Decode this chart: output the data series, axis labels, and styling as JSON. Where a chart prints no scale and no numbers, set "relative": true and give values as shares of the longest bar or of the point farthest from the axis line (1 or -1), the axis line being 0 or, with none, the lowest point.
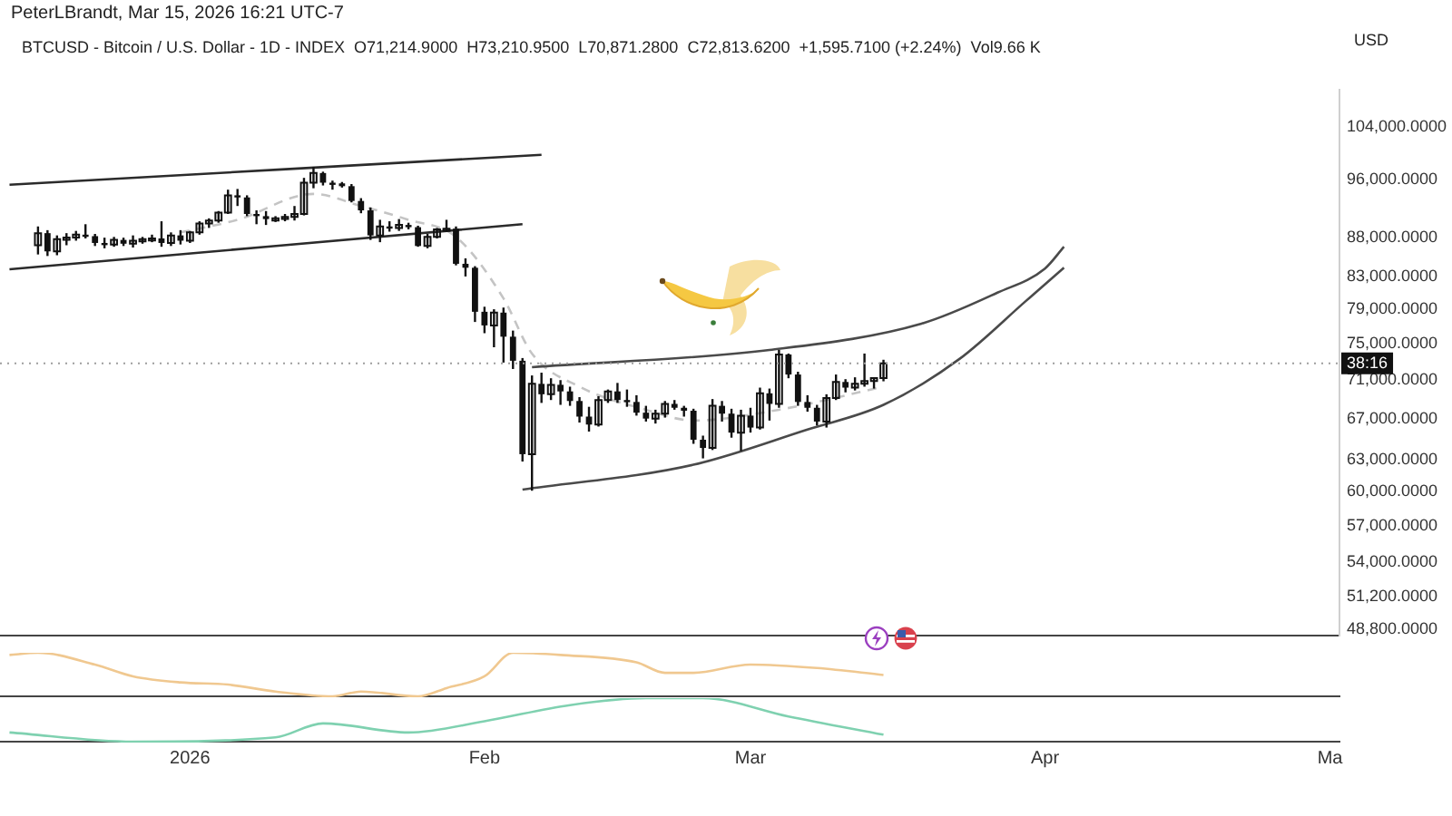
{
  "chart_data": [
    {
      "type": "candlestick",
      "title": "PeterLBrandt, Mar 15, 2026 16:21 UTC-7",
      "subtitle": "BTCUSD - Bitcoin / U.S. Dollar - 1D - INDEX  O71,214.9000  H73,210.9500  L70,871.2800  C72,813.6200  +1,595.7100 (+2.24%)  Vol9.66 K",
      "ylabel": "USD",
      "color": "#111111",
      "log": "y",
      "tick_labels": "y",
      "xlim": [
        "2025-12-12",
        "2026-05-02"
      ],
      "ylim": [
        48300,
        110000
      ],
      "yticks": [
        {
          "value": 48800,
          "label": "48,800.0000"
        },
        {
          "value": 51200,
          "label": "51,200.0000"
        },
        {
          "value": 54000,
          "label": "54,000.0000"
        },
        {
          "value": 57000,
          "label": "57,000.0000"
        },
        {
          "value": 60000,
          "label": "60,000.0000"
        },
        {
          "value": 63000,
          "label": "63,000.0000"
        },
        {
          "value": 67000,
          "label": "67,000.0000"
        },
        {
          "value": 71000,
          "label": "71,000.0000"
        },
        {
          "value": 75000,
          "label": "75,000.0000"
        },
        {
          "value": 79000,
          "label": "79,000.0000"
        },
        {
          "value": 83000,
          "label": "83,000.0000"
        },
        {
          "value": 88000,
          "label": "88,000.0000"
        },
        {
          "value": 96000,
          "label": "96,000.0000"
        },
        {
          "value": 104000,
          "label": "104,000.0000"
        }
      ],
      "x": [
        "2025-12-16",
        "2025-12-17",
        "2025-12-18",
        "2025-12-19",
        "2025-12-20",
        "2025-12-21",
        "2025-12-22",
        "2025-12-23",
        "2025-12-24",
        "2025-12-25",
        "2025-12-26",
        "2025-12-27",
        "2025-12-28",
        "2025-12-29",
        "2025-12-30",
        "2025-12-31",
        "2026-01-01",
        "2026-01-02",
        "2026-01-03",
        "2026-01-04",
        "2026-01-05",
        "2026-01-06",
        "2026-01-07",
        "2026-01-08",
        "2026-01-09",
        "2026-01-10",
        "2026-01-11",
        "2026-01-12",
        "2026-01-13",
        "2026-01-14",
        "2026-01-15",
        "2026-01-16",
        "2026-01-17",
        "2026-01-18",
        "2026-01-19",
        "2026-01-20",
        "2026-01-21",
        "2026-01-22",
        "2026-01-23",
        "2026-01-24",
        "2026-01-25",
        "2026-01-26",
        "2026-01-27",
        "2026-01-28",
        "2026-01-29",
        "2026-01-30",
        "2026-01-31",
        "2026-02-01",
        "2026-02-02",
        "2026-02-03",
        "2026-02-04",
        "2026-02-05",
        "2026-02-06",
        "2026-02-07",
        "2026-02-08",
        "2026-02-09",
        "2026-02-10",
        "2026-02-11",
        "2026-02-12",
        "2026-02-13",
        "2026-02-14",
        "2026-02-15",
        "2026-02-16",
        "2026-02-17",
        "2026-02-18",
        "2026-02-19",
        "2026-02-20",
        "2026-02-21",
        "2026-02-22",
        "2026-02-23",
        "2026-02-24",
        "2026-02-25",
        "2026-02-26",
        "2026-02-27",
        "2026-02-28",
        "2026-03-01",
        "2026-03-02",
        "2026-03-03",
        "2026-03-04",
        "2026-03-05",
        "2026-03-06",
        "2026-03-07",
        "2026-03-08",
        "2026-03-09",
        "2026-03-10",
        "2026-03-11",
        "2026-03-12",
        "2026-03-13",
        "2026-03-14",
        "2026-03-15"
      ],
      "ohlc": [
        [
          87000,
          89500,
          85800,
          88600
        ],
        [
          88600,
          89000,
          85600,
          86200
        ],
        [
          86200,
          88300,
          85700,
          87800
        ],
        [
          87800,
          88600,
          87000,
          88000
        ],
        [
          88000,
          88900,
          87600,
          88400
        ],
        [
          88400,
          89800,
          87900,
          88200
        ],
        [
          88200,
          88500,
          86900,
          87300
        ],
        [
          87300,
          88000,
          86600,
          87100
        ],
        [
          87100,
          88100,
          86800,
          87700
        ],
        [
          87700,
          88000,
          86900,
          87200
        ],
        [
          87200,
          88300,
          86700,
          87600
        ],
        [
          87600,
          88100,
          87200,
          87800
        ],
        [
          87800,
          88400,
          87400,
          87900
        ],
        [
          87900,
          90200,
          86800,
          87300
        ],
        [
          87300,
          88700,
          86900,
          88300
        ],
        [
          88300,
          89000,
          87100,
          87600
        ],
        [
          87600,
          88900,
          87300,
          88700
        ],
        [
          88700,
          90200,
          88400,
          89900
        ],
        [
          89900,
          90600,
          89300,
          90300
        ],
        [
          90300,
          91600,
          90000,
          91400
        ],
        [
          91400,
          94600,
          91200,
          93800
        ],
        [
          93800,
          94700,
          92300,
          93500
        ],
        [
          93500,
          93800,
          90900,
          91200
        ],
        [
          91200,
          91700,
          89800,
          90900
        ],
        [
          90900,
          91600,
          89700,
          90500
        ],
        [
          90500,
          90900,
          90100,
          90600
        ],
        [
          90600,
          91200,
          90200,
          90800
        ],
        [
          90800,
          92300,
          90300,
          91200
        ],
        [
          91200,
          96300,
          91000,
          95600
        ],
        [
          95600,
          97900,
          94800,
          97000
        ],
        [
          97000,
          97200,
          95200,
          95600
        ],
        [
          95600,
          95900,
          94600,
          95500
        ],
        [
          95500,
          95700,
          94900,
          95100
        ],
        [
          95100,
          95400,
          92800,
          93000
        ],
        [
          93000,
          93400,
          91300,
          91700
        ],
        [
          91700,
          92100,
          87700,
          88300
        ],
        [
          88300,
          90400,
          87400,
          89500
        ],
        [
          89500,
          90200,
          88800,
          89300
        ],
        [
          89300,
          90500,
          88900,
          89700
        ],
        [
          89700,
          90000,
          89100,
          89400
        ],
        [
          89400,
          89600,
          86800,
          86900
        ],
        [
          86900,
          88500,
          86600,
          88100
        ],
        [
          88100,
          89300,
          87900,
          89100
        ],
        [
          89100,
          90400,
          88800,
          89200
        ],
        [
          89200,
          89500,
          84400,
          84600
        ],
        [
          84600,
          85300,
          83000,
          84100
        ],
        [
          84100,
          84300,
          77500,
          78700
        ],
        [
          78700,
          79300,
          76200,
          77100
        ],
        [
          77100,
          79000,
          74600,
          78600
        ],
        [
          78600,
          79200,
          72900,
          75800
        ],
        [
          75800,
          76500,
          72200,
          73100
        ],
        [
          73100,
          73400,
          62800,
          63500
        ],
        [
          63500,
          71500,
          60100,
          70600
        ],
        [
          70600,
          71800,
          68600,
          69500
        ],
        [
          69500,
          71200,
          68900,
          70500
        ],
        [
          70500,
          71000,
          68400,
          69800
        ],
        [
          69800,
          70300,
          68300,
          68800
        ],
        [
          68800,
          69200,
          66600,
          67200
        ],
        [
          67200,
          68200,
          65700,
          66400
        ],
        [
          66400,
          69300,
          66200,
          68900
        ],
        [
          68900,
          70000,
          68600,
          69800
        ],
        [
          69800,
          70700,
          68600,
          68900
        ],
        [
          68900,
          70000,
          68200,
          68700
        ],
        [
          68700,
          69400,
          67300,
          67600
        ],
        [
          67600,
          68300,
          66700,
          67000
        ],
        [
          67000,
          67900,
          66500,
          67500
        ],
        [
          67500,
          68800,
          67100,
          68500
        ],
        [
          68500,
          68900,
          67900,
          68100
        ],
        [
          68100,
          68300,
          67200,
          67800
        ],
        [
          67800,
          68000,
          64500,
          64900
        ],
        [
          64900,
          65300,
          63100,
          64100
        ],
        [
          64100,
          69000,
          63900,
          68300
        ],
        [
          68300,
          68800,
          66700,
          67500
        ],
        [
          67500,
          68000,
          65100,
          65600
        ],
        [
          65600,
          67900,
          63800,
          67300
        ],
        [
          67300,
          68100,
          65600,
          66100
        ],
        [
          66100,
          70200,
          65900,
          69600
        ],
        [
          69600,
          70100,
          66800,
          68500
        ],
        [
          68500,
          74300,
          68100,
          73800
        ],
        [
          73800,
          73900,
          71200,
          71600
        ],
        [
          71600,
          71900,
          68300,
          68700
        ],
        [
          68700,
          69400,
          67700,
          68100
        ],
        [
          68100,
          68400,
          66300,
          66700
        ],
        [
          66700,
          69500,
          66100,
          69100
        ],
        [
          69100,
          71600,
          68900,
          70800
        ],
        [
          70800,
          71100,
          69700,
          70200
        ],
        [
          70200,
          71300,
          69900,
          70600
        ],
        [
          70600,
          73900,
          70300,
          70900
        ],
        [
          70900,
          71300,
          70100,
          71214.9
        ],
        [
          71214.9,
          73210.95,
          70871.28,
          72813.62
        ]
      ],
      "series": [
        {
          "type": "line",
          "color": "#2b2b2b",
          "x": [
            "2025-12-13",
            "2026-02-07"
          ],
          "values": [
            95300,
            99700
          ]
        },
        {
          "type": "line",
          "color": "#2b2b2b",
          "x": [
            "2025-12-13",
            "2026-02-05"
          ],
          "values": [
            83900,
            89800
          ]
        },
        {
          "type": "line",
          "color": "#4a4a4a",
          "x": [
            "2026-02-06",
            "2026-03-03",
            "2026-03-19",
            "2026-03-27",
            "2026-04-01",
            "2026-04-03"
          ],
          "values": [
            72400,
            74300,
            77300,
            81000,
            84000,
            86800
          ]
        },
        {
          "type": "line",
          "color": "#4a4a4a",
          "x": [
            "2026-02-05",
            "2026-02-23",
            "2026-03-07",
            "2026-03-15",
            "2026-03-23",
            "2026-03-30",
            "2026-04-03"
          ],
          "values": [
            60200,
            62500,
            65900,
            68400,
            73300,
            80000,
            84100
          ]
        },
        {
          "type": "line",
          "color": "#c4c4c4",
          "line_style": "dashed",
          "x": [
            "2025-12-31",
            "2026-01-06",
            "2026-01-14",
            "2026-01-19",
            "2026-01-24",
            "2026-01-29",
            "2026-02-03",
            "2026-02-06",
            "2026-02-11",
            "2026-02-18",
            "2026-02-23",
            "2026-03-04",
            "2026-03-15"
          ],
          "values": [
            88700,
            90400,
            94000,
            92300,
            90400,
            88100,
            80300,
            73900,
            70300,
            67900,
            66800,
            67900,
            70300
          ]
        }
      ],
      "ref_lines": [
        {
          "axis": "y",
          "value": 72813.62,
          "line_style": "dotted",
          "color": "#9e9e9e"
        }
      ],
      "annotations": [
        "38:16"
      ]
    },
    {
      "type": "line",
      "relative": true,
      "tick_labels": false,
      "color": "#f0c890",
      "xlim": [
        "2025-12-12",
        "2026-05-02"
      ],
      "x": [
        "2025-12-13",
        "2025-12-16",
        "2025-12-22",
        "2025-12-26",
        "2025-12-31",
        "2026-01-05",
        "2026-01-10",
        "2026-01-16",
        "2026-01-19",
        "2026-01-25",
        "2026-01-28",
        "2026-02-01",
        "2026-02-04",
        "2026-02-09",
        "2026-02-17",
        "2026-02-20",
        "2026-02-23",
        "2026-03-01",
        "2026-03-08",
        "2026-03-15"
      ],
      "values": [
        0.95,
        1,
        0.73,
        0.46,
        0.32,
        0.27,
        0.11,
        0,
        0.11,
        0,
        0.19,
        0.46,
        1,
        0.95,
        0.78,
        0.54,
        0.54,
        0.73,
        0.65,
        0.49
      ]
    },
    {
      "type": "line",
      "relative": true,
      "tick_labels": "x",
      "color": "#7fd1b0",
      "xlim": [
        "2025-12-12",
        "2026-05-02"
      ],
      "xticks": [
        {
          "value": "2026-01-01",
          "label": "2026"
        },
        {
          "value": "2026-02-01",
          "label": "Feb"
        },
        {
          "value": "2026-03-01",
          "label": "Mar"
        },
        {
          "value": "2026-04-01",
          "label": "Apr"
        },
        {
          "value": "2026-05-01",
          "label": "Ma"
        }
      ],
      "x": [
        "2025-12-13",
        "2025-12-26",
        "2026-01-10",
        "2026-01-15",
        "2026-01-24",
        "2026-02-01",
        "2026-02-10",
        "2026-02-18",
        "2026-02-24",
        "2026-03-05",
        "2026-03-15"
      ],
      "values": [
        0.21,
        0,
        0.1,
        0.42,
        0.21,
        0.47,
        0.84,
        1,
        1,
        0.58,
        0.16
      ]
    }
  ]
}
